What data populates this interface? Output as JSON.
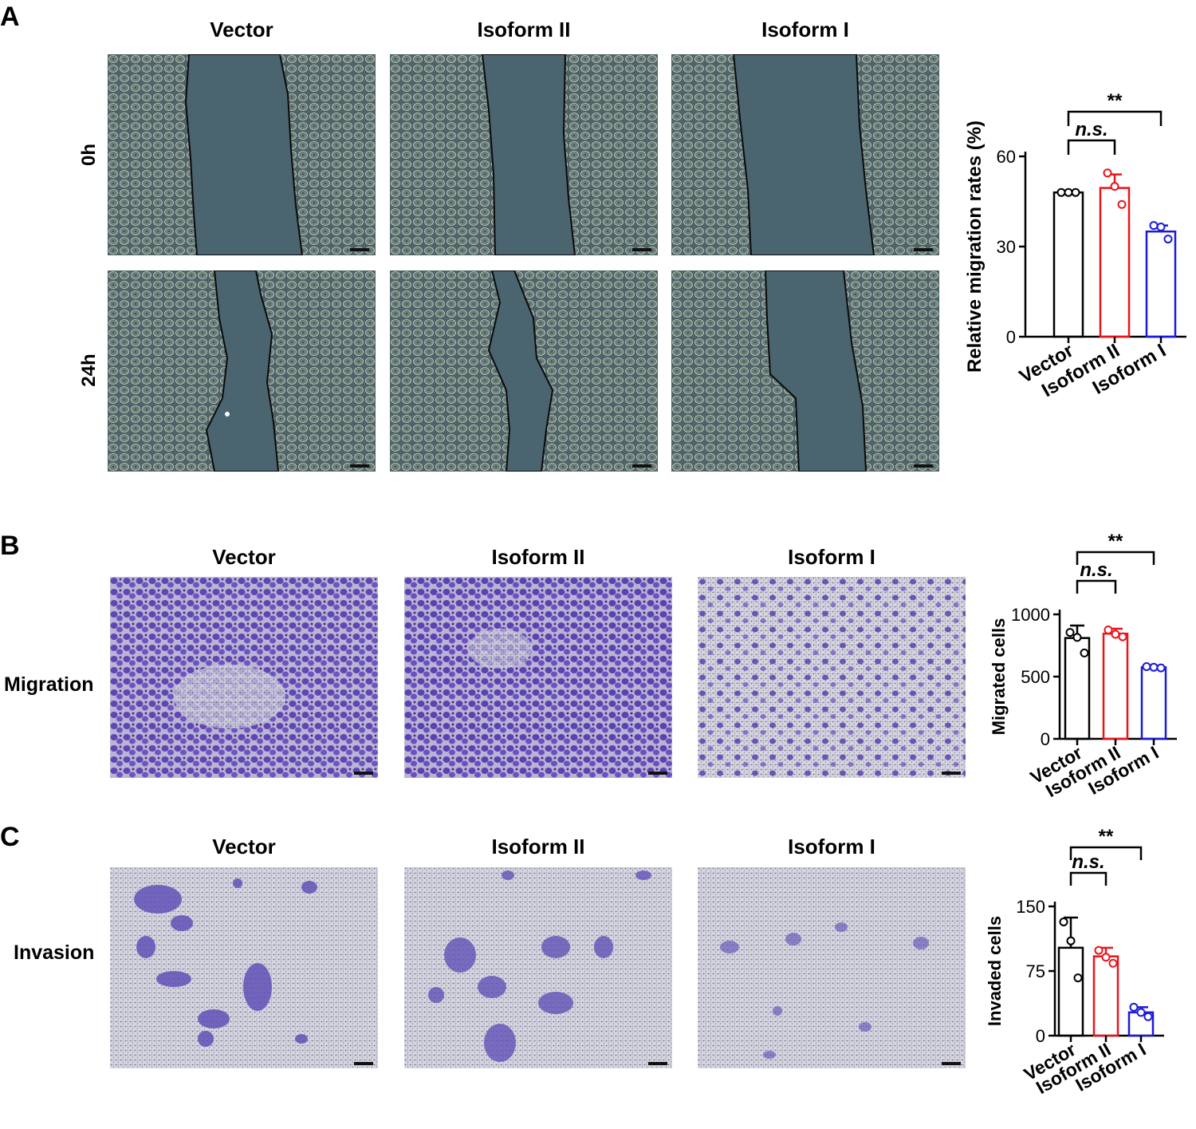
{
  "panel_a": {
    "letter": "A",
    "columns": [
      "Vector",
      "Isoform II",
      "Isoform I"
    ],
    "rows": [
      "0h",
      "24h"
    ]
  },
  "panel_b": {
    "letter": "B",
    "columns": [
      "Vector",
      "Isoform II",
      "Isoform I"
    ],
    "row_label": "Migration"
  },
  "panel_c": {
    "letter": "C",
    "columns": [
      "Vector",
      "Isoform II",
      "Isoform I"
    ],
    "row_label": "Invasion"
  },
  "colors": {
    "wound_bg": "#4a6470",
    "cell_field": "#6f7f80",
    "crystal_violet": "#5a3fb0",
    "membrane": "#c9ccd6",
    "vector": "#000000",
    "isoform2": "#e8151b",
    "isoform1": "#1a1adb"
  },
  "chart_data": [
    {
      "type": "bar",
      "id": "A",
      "categories": [
        "Vector",
        "Isoform II",
        "Isoform I"
      ],
      "values": [
        48,
        49.5,
        35
      ],
      "errors": [
        0.5,
        4.5,
        2
      ],
      "points": [
        [
          48,
          48,
          48
        ],
        [
          54.5,
          50,
          44
        ],
        [
          37,
          36.5,
          32.5
        ]
      ],
      "ylabel": "Relative migration rates (%)",
      "ylim": [
        0,
        60
      ],
      "yticks": [
        0,
        30,
        60
      ],
      "significance": [
        {
          "from": 0,
          "to": 1,
          "label": "n.s."
        },
        {
          "from": 0,
          "to": 2,
          "label": "**"
        }
      ]
    },
    {
      "type": "bar",
      "id": "B",
      "categories": [
        "Vector",
        "Isoform II",
        "Isoform I"
      ],
      "values": [
        810,
        845,
        575
      ],
      "errors": [
        100,
        40,
        12
      ],
      "points": [
        [
          855,
          815,
          690
        ],
        [
          875,
          840,
          820
        ],
        [
          580,
          575,
          570
        ]
      ],
      "ylabel": "Migrated cells",
      "ylim": [
        0,
        1000
      ],
      "yticks": [
        0,
        500,
        1000
      ],
      "significance": [
        {
          "from": 0,
          "to": 1,
          "label": "n.s."
        },
        {
          "from": 0,
          "to": 2,
          "label": "**"
        }
      ]
    },
    {
      "type": "bar",
      "id": "C",
      "categories": [
        "Vector",
        "Isoform II",
        "Isoform I"
      ],
      "values": [
        102,
        92,
        27
      ],
      "errors": [
        35,
        10,
        6
      ],
      "points": [
        [
          132,
          110,
          67
        ],
        [
          99,
          91,
          84
        ],
        [
          33,
          27,
          22
        ]
      ],
      "ylabel": "Invaded cells",
      "ylim": [
        0,
        150
      ],
      "yticks": [
        0,
        75,
        150
      ],
      "significance": [
        {
          "from": 0,
          "to": 1,
          "label": "n.s."
        },
        {
          "from": 0,
          "to": 2,
          "label": "**"
        }
      ]
    }
  ]
}
